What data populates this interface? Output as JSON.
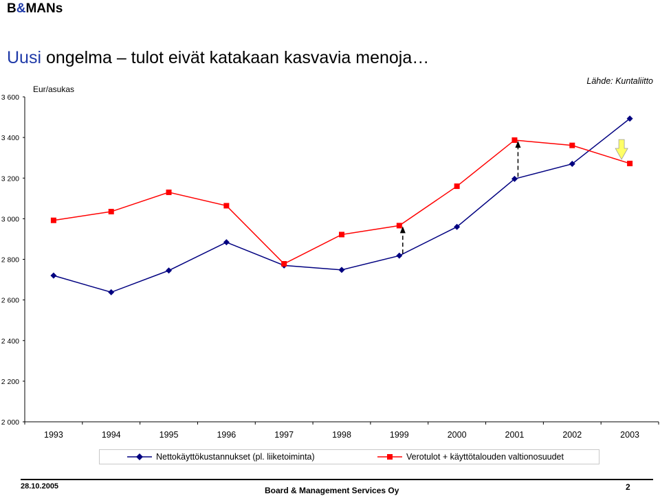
{
  "header": {
    "logo_prefix": "B",
    "logo_amp": "&",
    "logo_suffix": "MANs",
    "title_highlight": "Uusi",
    "title_rest": "ongelma – tulot eivät katakaan kasvavia menoja…",
    "source": "Lähde: Kuntaliitto"
  },
  "footer": {
    "date": "28.10.2005",
    "company": "Board & Management Services Oy",
    "page": "2"
  },
  "chart_data": {
    "type": "line",
    "ylabel": "Eur/asukas",
    "ylim": [
      2000,
      3600
    ],
    "yticks": [
      3600,
      3400,
      3200,
      3000,
      2800,
      2600,
      2400,
      2200,
      2000
    ],
    "ytick_labels": [
      "3 600",
      "3 400",
      "3 200",
      "3 000",
      "2 800",
      "2 600",
      "2 400",
      "2 200",
      "2 000"
    ],
    "categories": [
      "1993",
      "1994",
      "1995",
      "1996",
      "1997",
      "1998",
      "1999",
      "2000",
      "2001",
      "2002",
      "2003"
    ],
    "series": [
      {
        "name": "Nettokäyttökustannukset (pl. liiketoiminta)",
        "color": "#000080",
        "marker": "diamond",
        "values": [
          2720,
          2638,
          2745,
          2884,
          2770,
          2748,
          2818,
          2960,
          3196,
          3270,
          3493
        ]
      },
      {
        "name": "Verotulot + käyttötalouden valtionosuudet",
        "color": "#ff0000",
        "marker": "square",
        "values": [
          2992,
          3035,
          3130,
          3064,
          2778,
          2922,
          2966,
          3160,
          3387,
          3361,
          3272
        ]
      }
    ],
    "annotations": [
      {
        "type": "dashed-arrow",
        "year": "1999",
        "from": 2818,
        "to": 2966
      },
      {
        "type": "dashed-arrow",
        "year": "2001",
        "from": 3196,
        "to": 3387
      },
      {
        "type": "highlight-arrow",
        "year": "2003",
        "from": 3390,
        "to": 3272,
        "color": "#ffff66"
      }
    ],
    "grid": false,
    "legend": "bottom"
  }
}
